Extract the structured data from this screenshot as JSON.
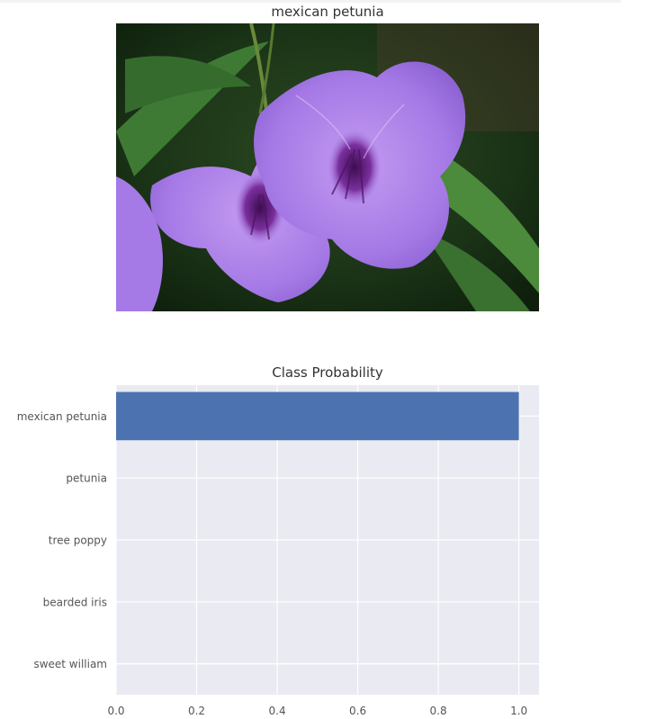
{
  "image_panel": {
    "title": "mexican petunia"
  },
  "chart_data": {
    "type": "bar",
    "orientation": "horizontal",
    "title": "Class Probability",
    "xlabel": "",
    "ylabel": "",
    "categories": [
      "mexican petunia",
      "petunia",
      "tree poppy",
      "bearded iris",
      "sweet william"
    ],
    "values": [
      1.0,
      0.0,
      0.0,
      0.0,
      0.0
    ],
    "xlim": [
      0.0,
      1.05
    ],
    "xticks": [
      "0.0",
      "0.2",
      "0.4",
      "0.6",
      "0.8",
      "1.0"
    ],
    "grid": true,
    "legend": "none",
    "colors": {
      "bar": "#4c72b0",
      "background": "#eaeaf2",
      "grid": "#ffffff"
    }
  }
}
